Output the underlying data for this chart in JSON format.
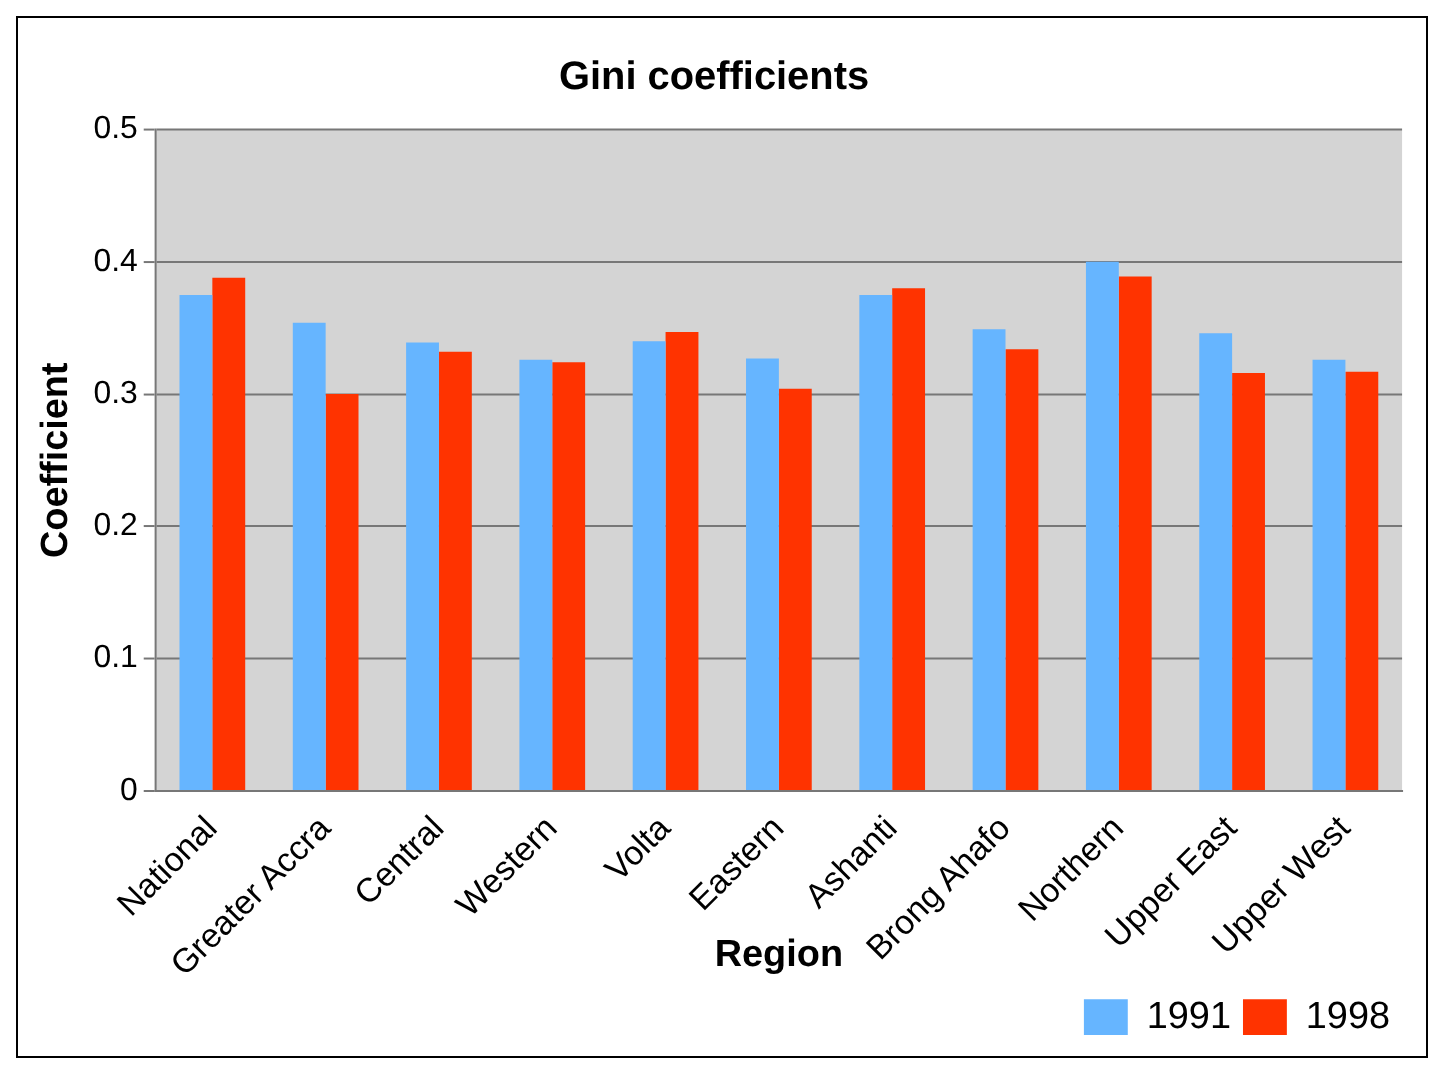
{
  "chart_data": {
    "type": "bar",
    "title": "Gini coefficients",
    "xlabel": "Region",
    "ylabel": "Coefficient",
    "categories": [
      "National",
      "Greater Accra",
      "Central",
      "Western",
      "Volta",
      "Eastern",
      "Ashanti",
      "Brong Ahafo",
      "Northern",
      "Upper East",
      "Upper West"
    ],
    "series": [
      {
        "name": "1991",
        "color": "#66b5ff",
        "values": [
          0.375,
          0.354,
          0.339,
          0.326,
          0.34,
          0.327,
          0.375,
          0.349,
          0.4,
          0.346,
          0.326
        ]
      },
      {
        "name": "1998",
        "color": "#ff3300",
        "values": [
          0.388,
          0.3,
          0.332,
          0.324,
          0.347,
          0.304,
          0.38,
          0.334,
          0.389,
          0.316,
          0.317
        ]
      }
    ],
    "ylim": [
      0,
      0.5
    ],
    "yticks": [
      0,
      0.1,
      0.2,
      0.3,
      0.4,
      0.5
    ],
    "grid": "y",
    "legend": "bottom right"
  }
}
